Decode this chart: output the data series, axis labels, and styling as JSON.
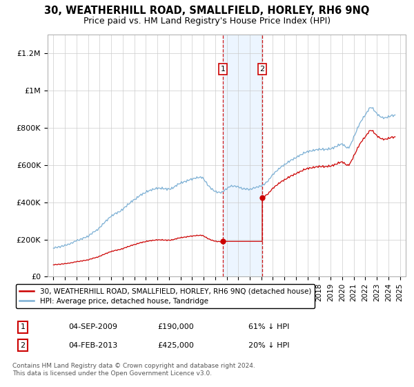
{
  "title": "30, WEATHERHILL ROAD, SMALLFIELD, HORLEY, RH6 9NQ",
  "subtitle": "Price paid vs. HM Land Registry's House Price Index (HPI)",
  "title_fontsize": 10.5,
  "subtitle_fontsize": 9,
  "legend_line1": "30, WEATHERHILL ROAD, SMALLFIELD, HORLEY, RH6 9NQ (detached house)",
  "legend_line2": "HPI: Average price, detached house, Tandridge",
  "footnote": "Contains HM Land Registry data © Crown copyright and database right 2024.\nThis data is licensed under the Open Government Licence v3.0.",
  "transaction1_date": "04-SEP-2009",
  "transaction1_price": "£190,000",
  "transaction1_pct": "61% ↓ HPI",
  "transaction1_x": 2009.67,
  "transaction1_y": 190000,
  "transaction2_date": "04-FEB-2013",
  "transaction2_price": "£425,000",
  "transaction2_pct": "20% ↓ HPI",
  "transaction2_x": 2013.08,
  "transaction2_y": 425000,
  "shade_x_start": 2009.67,
  "shade_x_end": 2013.08,
  "hpi_color": "#7bafd4",
  "price_color": "#cc0000",
  "shade_color": "#ddeeff",
  "shade_alpha": 0.55,
  "ylim": [
    0,
    1300000
  ],
  "xlim": [
    1994.5,
    2025.5
  ],
  "yticks": [
    0,
    200000,
    400000,
    600000,
    800000,
    1000000,
    1200000
  ],
  "ytick_labels": [
    "£0",
    "£200K",
    "£400K",
    "£600K",
    "£800K",
    "£1M",
    "£1.2M"
  ],
  "xticks": [
    1995,
    1996,
    1997,
    1998,
    1999,
    2000,
    2001,
    2002,
    2003,
    2004,
    2005,
    2006,
    2007,
    2008,
    2009,
    2010,
    2011,
    2012,
    2013,
    2014,
    2015,
    2016,
    2017,
    2018,
    2019,
    2020,
    2021,
    2022,
    2023,
    2024,
    2025
  ]
}
